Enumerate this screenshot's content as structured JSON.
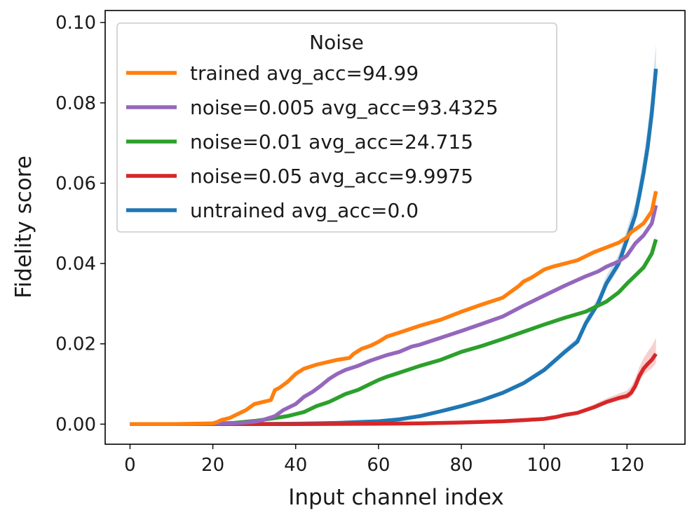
{
  "chart_data": {
    "type": "line",
    "xlabel": "Input channel index",
    "ylabel": "Fidelity score",
    "xlim": [
      -6,
      134
    ],
    "ylim": [
      -0.005,
      0.103
    ],
    "xticks": [
      0,
      20,
      40,
      60,
      80,
      100,
      120
    ],
    "xtick_labels": [
      "0",
      "20",
      "40",
      "60",
      "80",
      "100",
      "120"
    ],
    "yticks": [
      0.0,
      0.02,
      0.04,
      0.06,
      0.08,
      0.1
    ],
    "ytick_labels": [
      "0.00",
      "0.02",
      "0.04",
      "0.06",
      "0.08",
      "0.10"
    ],
    "grid": false,
    "legend": {
      "title": "Noise",
      "placement": "upper-left"
    },
    "series": [
      {
        "name": "trained avg_acc=94.99",
        "color": "#ff7f0e",
        "x": [
          0,
          10,
          20,
          21,
          22,
          24,
          26,
          28,
          30,
          32,
          34,
          35,
          36,
          38,
          40,
          42,
          45,
          50,
          53,
          54,
          56,
          58,
          60,
          62,
          65,
          70,
          75,
          80,
          85,
          90,
          92,
          94,
          95,
          97,
          100,
          102,
          105,
          108,
          110,
          112,
          115,
          118,
          120,
          121,
          122,
          124,
          126,
          127
        ],
        "values": [
          0,
          0,
          0.0002,
          0.0005,
          0.001,
          0.0015,
          0.0025,
          0.0035,
          0.005,
          0.0055,
          0.006,
          0.0085,
          0.009,
          0.0105,
          0.0125,
          0.0138,
          0.0148,
          0.016,
          0.0165,
          0.0175,
          0.0188,
          0.0195,
          0.0205,
          0.0218,
          0.0228,
          0.0245,
          0.026,
          0.028,
          0.0298,
          0.0315,
          0.033,
          0.0345,
          0.0355,
          0.0365,
          0.0385,
          0.0392,
          0.04,
          0.0408,
          0.0418,
          0.0428,
          0.044,
          0.0452,
          0.0465,
          0.0478,
          0.0485,
          0.05,
          0.053,
          0.058
        ],
        "band": 0.0005
      },
      {
        "name": "noise=0.005 avg_acc=93.4325",
        "color": "#9467bd",
        "x": [
          0,
          15,
          25,
          28,
          30,
          32,
          35,
          37,
          40,
          42,
          44,
          46,
          48,
          50,
          52,
          55,
          58,
          60,
          62,
          65,
          68,
          70,
          75,
          80,
          85,
          90,
          95,
          100,
          105,
          110,
          113,
          115,
          118,
          120,
          122,
          124,
          126,
          127
        ],
        "values": [
          0,
          0,
          0.0002,
          0.0004,
          0.0006,
          0.001,
          0.002,
          0.0035,
          0.005,
          0.0068,
          0.008,
          0.0095,
          0.0112,
          0.0125,
          0.0135,
          0.0145,
          0.0158,
          0.0165,
          0.0172,
          0.018,
          0.0193,
          0.0198,
          0.0215,
          0.0232,
          0.025,
          0.0268,
          0.0295,
          0.032,
          0.0345,
          0.0368,
          0.038,
          0.0392,
          0.0405,
          0.042,
          0.045,
          0.047,
          0.05,
          0.0545
        ],
        "band": 0.0006
      },
      {
        "name": "noise=0.01 avg_acc=24.715",
        "color": "#2ca02c",
        "x": [
          0,
          15,
          25,
          30,
          35,
          38,
          40,
          42,
          45,
          48,
          50,
          52,
          55,
          58,
          60,
          62,
          65,
          70,
          75,
          80,
          85,
          90,
          95,
          100,
          105,
          110,
          115,
          118,
          120,
          122,
          124,
          126,
          127
        ],
        "values": [
          0,
          0,
          0.0003,
          0.0008,
          0.0015,
          0.002,
          0.0025,
          0.003,
          0.0045,
          0.0055,
          0.0065,
          0.0075,
          0.0085,
          0.01,
          0.011,
          0.0118,
          0.0128,
          0.0145,
          0.016,
          0.018,
          0.0195,
          0.0212,
          0.023,
          0.0248,
          0.0265,
          0.028,
          0.0305,
          0.0328,
          0.035,
          0.037,
          0.039,
          0.0425,
          0.046
        ],
        "band": 0.001
      },
      {
        "name": "noise=0.05 avg_acc=9.9975",
        "color": "#d62728",
        "x": [
          0,
          20,
          40,
          60,
          70,
          80,
          90,
          95,
          100,
          103,
          105,
          108,
          110,
          112,
          115,
          118,
          120,
          121,
          122,
          123,
          124,
          125,
          126,
          127
        ],
        "values": [
          0,
          0,
          0,
          0.0001,
          0.0002,
          0.0004,
          0.0007,
          0.001,
          0.0013,
          0.0018,
          0.0023,
          0.0028,
          0.0035,
          0.0042,
          0.0055,
          0.0065,
          0.007,
          0.0078,
          0.0095,
          0.012,
          0.0138,
          0.015,
          0.016,
          0.0175
        ],
        "band": 0.004
      },
      {
        "name": "untrained avg_acc=0.0",
        "color": "#1f77b4",
        "x": [
          0,
          20,
          40,
          50,
          60,
          65,
          70,
          75,
          80,
          85,
          90,
          95,
          100,
          105,
          108,
          110,
          113,
          115,
          118,
          120,
          122,
          123,
          124,
          125,
          126,
          127
        ],
        "values": [
          0,
          0,
          0.0001,
          0.0003,
          0.0007,
          0.0012,
          0.002,
          0.0032,
          0.0045,
          0.006,
          0.0078,
          0.0102,
          0.0135,
          0.018,
          0.0205,
          0.025,
          0.03,
          0.035,
          0.04,
          0.046,
          0.052,
          0.057,
          0.0625,
          0.069,
          0.0775,
          0.0885
        ],
        "band": 0.006
      }
    ]
  }
}
